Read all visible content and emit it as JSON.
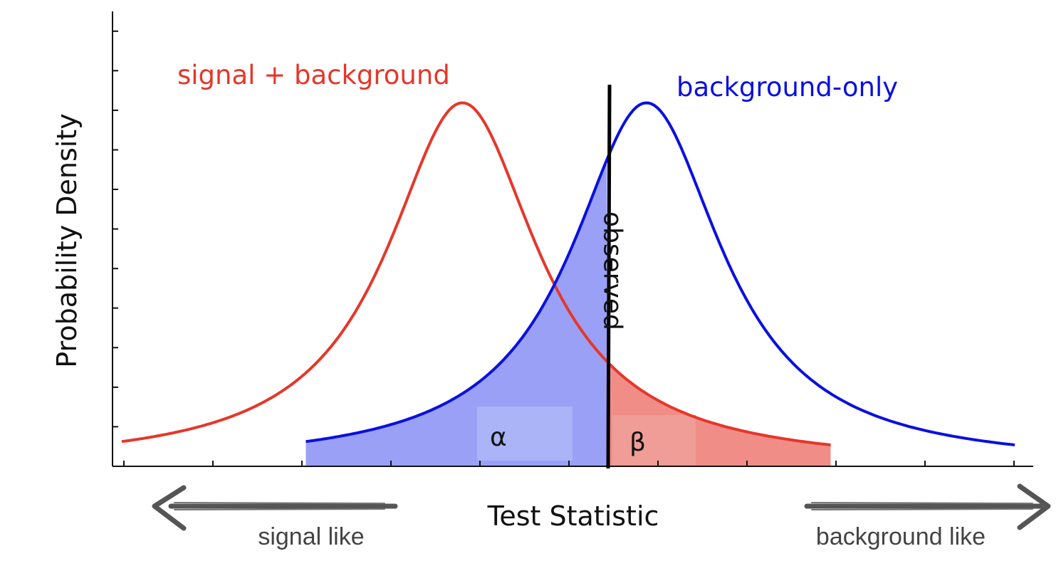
{
  "chart_data": {
    "type": "line",
    "xlabel": "Test Statistic",
    "ylabel": "Probability Density",
    "x_ticks": 10,
    "y_ticks": 12,
    "series": [
      {
        "name": "signal + background",
        "color": "#e5372a",
        "shape": "lorentzian",
        "center": 0.38,
        "width": 0.1,
        "peak": 0.92,
        "x_range": [
          0.01,
          0.78
        ]
      },
      {
        "name": "background-only",
        "color": "#0a10e0",
        "shape": "lorentzian",
        "center": 0.58,
        "width": 0.1,
        "peak": 0.92,
        "x_range": [
          0.21,
          0.98
        ]
      }
    ],
    "observed": {
      "label": "observed",
      "x": 0.537
    },
    "regions": [
      {
        "label": "α",
        "series": "background-only",
        "side": "left-of-observed",
        "color": "#9aa0f5"
      },
      {
        "label": "β",
        "series": "signal + background",
        "side": "right-of-observed",
        "color": "#f08d87"
      }
    ],
    "directions": {
      "left": "signal like",
      "right": "background like"
    }
  }
}
